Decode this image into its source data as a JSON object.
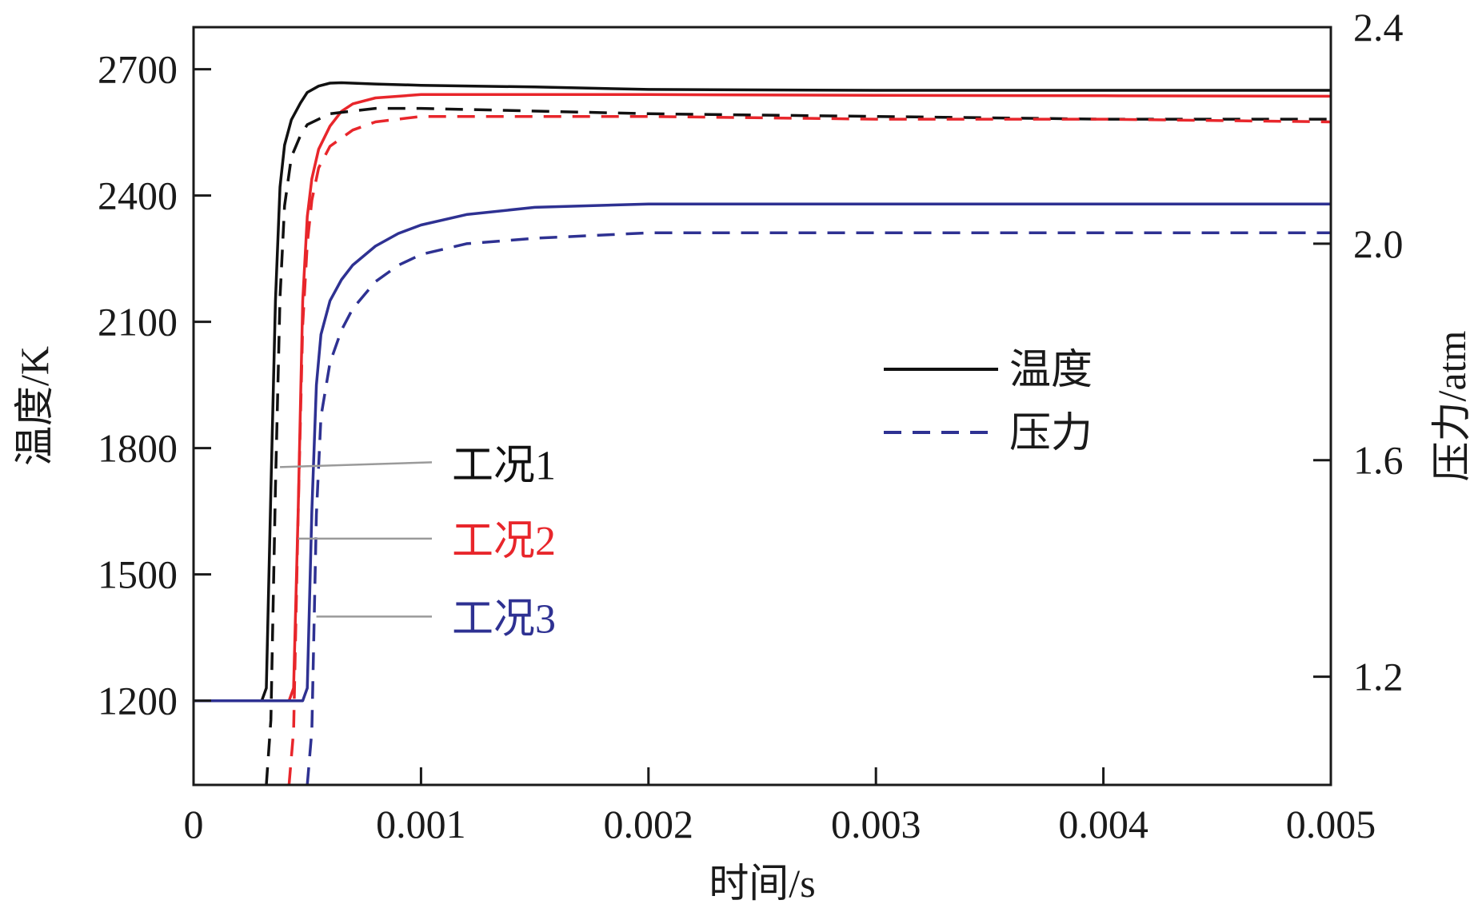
{
  "chart_data": {
    "type": "line",
    "title": "",
    "xlabel": "时间/s",
    "ylabel_left": "温度/K",
    "ylabel_right": "压力/atm",
    "xlim": [
      0,
      0.005
    ],
    "ylim_left": [
      1000,
      2800
    ],
    "ylim_right": [
      1.0,
      2.4
    ],
    "x_ticks": [
      0,
      0.001,
      0.002,
      0.003,
      0.004,
      0.005
    ],
    "x_tick_labels": [
      "0",
      "0.001",
      "0.002",
      "0.003",
      "0.004",
      "0.005"
    ],
    "y_left_ticks": [
      1200,
      1500,
      1800,
      2100,
      2400,
      2700
    ],
    "y_left_tick_labels": [
      "1200",
      "1500",
      "1800",
      "2100",
      "2400",
      "2700"
    ],
    "y_right_ticks": [
      1.2,
      1.6,
      2.0,
      2.4
    ],
    "y_right_tick_labels": [
      "1.2",
      "1.6",
      "2.0",
      "2.4"
    ],
    "grid": false,
    "legend": {
      "position": "center-right",
      "entries": [
        {
          "label": "温度",
          "style": "solid",
          "color": "#111111"
        },
        {
          "label": "压力",
          "style": "dashed",
          "color": "#2e3192"
        }
      ]
    },
    "annotations": [
      {
        "text": "工况1",
        "color": "#111111",
        "points_to_x": 0.00038,
        "points_to_y": 1755
      },
      {
        "text": "工况2",
        "color": "#e8262b",
        "points_to_x": 0.00046,
        "points_to_y": 1585
      },
      {
        "text": "工况3",
        "color": "#2e3192",
        "points_to_x": 0.00054,
        "points_to_y": 1400
      }
    ],
    "series": [
      {
        "name": "工况1 温度",
        "axis": "left",
        "style": "solid",
        "color": "#111111",
        "x": [
          0,
          0.0003,
          0.00032,
          0.00034,
          0.00036,
          0.00038,
          0.0004,
          0.00043,
          0.00047,
          0.0005,
          0.00055,
          0.0006,
          0.00065,
          0.0008,
          0.001,
          0.0015,
          0.002,
          0.003,
          0.004,
          0.005
        ],
        "y": [
          1200,
          1200,
          1230,
          1700,
          2150,
          2420,
          2520,
          2580,
          2620,
          2645,
          2660,
          2667,
          2668,
          2665,
          2662,
          2658,
          2652,
          2650,
          2650,
          2650
        ]
      },
      {
        "name": "工况2 温度",
        "axis": "left",
        "style": "solid",
        "color": "#e8262b",
        "x": [
          0,
          0.00042,
          0.00044,
          0.00046,
          0.00048,
          0.0005,
          0.00052,
          0.00055,
          0.0006,
          0.00065,
          0.0007,
          0.0008,
          0.001,
          0.002,
          0.003,
          0.004,
          0.005
        ],
        "y": [
          1200,
          1200,
          1230,
          1650,
          2150,
          2350,
          2440,
          2510,
          2565,
          2600,
          2618,
          2632,
          2640,
          2640,
          2638,
          2637,
          2636
        ]
      },
      {
        "name": "工况3 温度",
        "axis": "left",
        "style": "solid",
        "color": "#2e3192",
        "x": [
          0,
          0.00048,
          0.0005,
          0.00052,
          0.00054,
          0.00056,
          0.0006,
          0.00065,
          0.0007,
          0.0008,
          0.0009,
          0.001,
          0.0012,
          0.0015,
          0.002,
          0.003,
          0.004,
          0.005
        ],
        "y": [
          1200,
          1200,
          1230,
          1650,
          1950,
          2070,
          2150,
          2200,
          2235,
          2280,
          2310,
          2330,
          2355,
          2372,
          2380,
          2380,
          2380,
          2380
        ]
      },
      {
        "name": "工况1 压力",
        "axis": "right",
        "style": "dashed",
        "color": "#111111",
        "x": [
          0.00032,
          0.00034,
          0.00036,
          0.00038,
          0.0004,
          0.00043,
          0.00047,
          0.0005,
          0.0006,
          0.0008,
          0.001,
          0.002,
          0.003,
          0.004,
          0.005
        ],
        "y": [
          1.0,
          1.12,
          1.55,
          1.9,
          2.07,
          2.16,
          2.2,
          2.22,
          2.24,
          2.25,
          2.25,
          2.24,
          2.235,
          2.23,
          2.23
        ]
      },
      {
        "name": "工况2 压力",
        "axis": "right",
        "style": "dashed",
        "color": "#e8262b",
        "x": [
          0.00042,
          0.00044,
          0.00046,
          0.00048,
          0.0005,
          0.00052,
          0.00055,
          0.0006,
          0.0007,
          0.0008,
          0.001,
          0.002,
          0.003,
          0.004,
          0.005
        ],
        "y": [
          1.0,
          1.1,
          1.5,
          1.85,
          2.0,
          2.08,
          2.14,
          2.18,
          2.21,
          2.225,
          2.235,
          2.235,
          2.23,
          2.23,
          2.225
        ]
      },
      {
        "name": "工况3 压力",
        "axis": "right",
        "style": "dashed",
        "color": "#2e3192",
        "x": [
          0.0005,
          0.00052,
          0.00054,
          0.00056,
          0.0006,
          0.00065,
          0.0007,
          0.0008,
          0.0009,
          0.001,
          0.0012,
          0.0015,
          0.002,
          0.003,
          0.004,
          0.005
        ],
        "y": [
          1.0,
          1.1,
          1.5,
          1.68,
          1.78,
          1.84,
          1.88,
          1.93,
          1.96,
          1.98,
          2.0,
          2.01,
          2.02,
          2.02,
          2.02,
          2.02
        ]
      }
    ]
  }
}
